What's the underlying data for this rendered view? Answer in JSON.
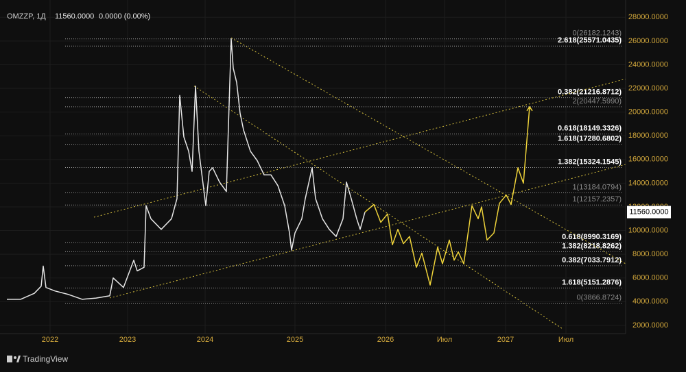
{
  "chart_data": {
    "type": "line",
    "symbol": "OMZZP, 1Д",
    "price": "11560.0000",
    "change": "0.0000 (0.00%)",
    "brand": "TradingView",
    "xlim": [
      0,
      1824
    ],
    "ylim": [
      1300,
      29000
    ],
    "xticks": [
      {
        "value": 146,
        "label": "2022"
      },
      {
        "value": 372,
        "label": "2023"
      },
      {
        "value": 598,
        "label": "2024"
      },
      {
        "value": 860,
        "label": "2025"
      },
      {
        "value": 1124,
        "label": "2026"
      },
      {
        "value": 1296,
        "label": "Июл"
      },
      {
        "value": 1474,
        "label": "2027"
      },
      {
        "value": 1650,
        "label": "Июл"
      }
    ],
    "yticks": [
      {
        "value": 2000,
        "label": "2000.0000"
      },
      {
        "value": 4000,
        "label": "4000.0000"
      },
      {
        "value": 6000,
        "label": "6000.0000"
      },
      {
        "value": 8000,
        "label": "8000.0000"
      },
      {
        "value": 10000,
        "label": "10000.0000"
      },
      {
        "value": 12000,
        "label": "12000.0000"
      },
      {
        "value": 14000,
        "label": "14000.0000"
      },
      {
        "value": 16000,
        "label": "16000.0000"
      },
      {
        "value": 18000,
        "label": "18000.0000"
      },
      {
        "value": 20000,
        "label": "20000.0000"
      },
      {
        "value": 22000,
        "label": "22000.0000"
      },
      {
        "value": 24000,
        "label": "24000.0000"
      },
      {
        "value": 26000,
        "label": "26000.0000"
      },
      {
        "value": 28000,
        "label": "28000.0000"
      }
    ],
    "grid": true,
    "last_price": {
      "value": 11560,
      "label": "11560.0000"
    },
    "series": [
      {
        "color": "#e6e6e6",
        "x": [
          20,
          60,
          100,
          120,
          126,
          134,
          160,
          200,
          240,
          280,
          320,
          330,
          360,
          390,
          400,
          420,
          426,
          440,
          470,
          500,
          516,
          524,
          536,
          550,
          560,
          570,
          580,
          600,
          610,
          620,
          640,
          660,
          674,
          680,
          690,
          700,
          710,
          730,
          750,
          770,
          790,
          810,
          830,
          844,
          850,
          860,
          880,
          890,
          910,
          920,
          940,
          960,
          980,
          1000,
          1010,
          1024,
          1040,
          1050,
          1064
        ],
        "values": [
          4200,
          4200,
          4700,
          5300,
          7000,
          5200,
          4900,
          4600,
          4200,
          4300,
          4500,
          6000,
          5200,
          7500,
          6600,
          6900,
          12100,
          11000,
          10100,
          11000,
          12700,
          21400,
          17900,
          16700,
          15000,
          22200,
          16700,
          12100,
          15000,
          15300,
          14100,
          13300,
          26180,
          23700,
          22500,
          19900,
          18500,
          16700,
          15900,
          14700,
          14700,
          13800,
          12100,
          9800,
          8350,
          9800,
          11000,
          12700,
          15300,
          12700,
          11000,
          10100,
          9500,
          11000,
          14100,
          12700,
          11000,
          10100,
          11560
        ]
      },
      {
        "color": "#f0d43a",
        "x": [
          1064,
          1090,
          1110,
          1130,
          1144,
          1160,
          1176,
          1194,
          1214,
          1230,
          1254,
          1276,
          1290,
          1310,
          1324,
          1336,
          1352,
          1376,
          1394,
          1404,
          1420,
          1440,
          1456,
          1476,
          1490,
          1510,
          1526,
          1544
        ],
        "values": [
          11560,
          12200,
          10700,
          11400,
          8800,
          10100,
          8900,
          9500,
          6900,
          8100,
          5400,
          8600,
          7200,
          9200,
          7500,
          8200,
          7200,
          12100,
          11000,
          12000,
          9200,
          9800,
          12300,
          13000,
          12200,
          15300,
          14000,
          20450
        ]
      }
    ],
    "trendlines": {
      "color": "#d9c23e",
      "lines": [
        {
          "x": [
            274,
            1824
          ],
          "y": [
            11130,
            22800
          ]
        },
        {
          "x": [
            320,
            1824
          ],
          "y": [
            4310,
            15580
          ]
        },
        {
          "x": [
            674,
            1824
          ],
          "y": [
            26270,
            7200
          ]
        },
        {
          "x": [
            566,
            1640
          ],
          "y": [
            22200,
            1710
          ]
        }
      ]
    },
    "levels": [
      {
        "value": 26182.1243,
        "label": "0(26182.1243)",
        "color": "#8a8a8a"
      },
      {
        "value": 25571.0435,
        "label": "2.618(25571.0435)",
        "color": "#ffffff"
      },
      {
        "value": 21216.8712,
        "label": "0.382(21216.8712)",
        "color": "#ffffff"
      },
      {
        "value": 20447.599,
        "label": "2(20447.5990)",
        "color": "#8a8a8a"
      },
      {
        "value": 18149.3326,
        "label": "0.618(18149.3326)",
        "color": "#ffffff"
      },
      {
        "value": 17280.6802,
        "label": "1.618(17280.6802)",
        "color": "#ffffff"
      },
      {
        "value": 15324.1545,
        "label": "1.382(15324.1545)",
        "color": "#ffffff"
      },
      {
        "value": 13184.0794,
        "label": "1(13184.0794)",
        "color": "#8a8a8a"
      },
      {
        "value": 12157.2357,
        "label": "1(12157.2357)",
        "color": "#8a8a8a"
      },
      {
        "value": 8990.3169,
        "label": "0.618(8990.3169)",
        "color": "#ffffff"
      },
      {
        "value": 8218.8262,
        "label": "1.382(8218.8262)",
        "color": "#ffffff"
      },
      {
        "value": 7033.7912,
        "label": "0.382(7033.7912)",
        "color": "#ffffff"
      },
      {
        "value": 5151.2876,
        "label": "1.618(5151.2876)",
        "color": "#ffffff"
      },
      {
        "value": 3866.8724,
        "label": "0(3866.8724)",
        "color": "#8a8a8a"
      }
    ]
  }
}
